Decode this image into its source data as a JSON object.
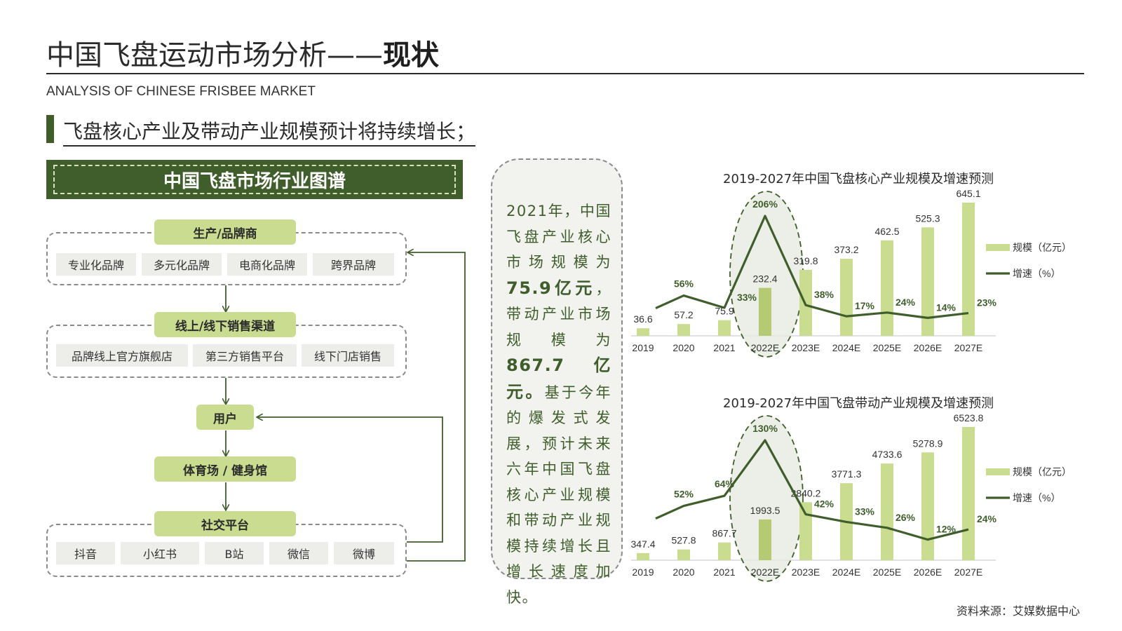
{
  "header": {
    "title_main": "中国飞盘运动市场分析——",
    "title_bold": "现状",
    "subtitle_en": "ANALYSIS OF CHINESE FRISBEE MARKET",
    "section_heading": "飞盘核心产业及带动产业规模预计将持续增长；"
  },
  "industry_map": {
    "title": "中国飞盘市场行业图谱",
    "producers": {
      "label": "生产/品牌商",
      "items": [
        "专业化品牌",
        "多元化品牌",
        "电商化品牌",
        "跨界品牌"
      ]
    },
    "channels": {
      "label": "线上/线下销售渠道",
      "items": [
        "品牌线上官方旗舰店",
        "第三方销售平台",
        "线下门店销售"
      ]
    },
    "users": {
      "label": "用户"
    },
    "venues": {
      "label": "体育场 / 健身馆"
    },
    "social": {
      "label": "社交平台",
      "items": [
        "抖音",
        "小红书",
        "B站",
        "微信",
        "微博"
      ]
    }
  },
  "text_panel": {
    "p1": "2021年，中国飞盘产业核心市场规模为",
    "v1": "75.9亿元",
    "p2": "，带动产业市场规模为",
    "v2": "867.7亿元。",
    "p3": "基于今年的爆发式发展，预计未来六年中国飞盘核心产业规模和带动产业规模持续增长且增长速度加快。"
  },
  "colors": {
    "accent_dark": "#3f5e2b",
    "bar": "#c9dc8f",
    "bar_dark": "#b5ca72",
    "line": "#3f5e2b",
    "chip_bg": "#ededea"
  },
  "chart_data": [
    {
      "type": "bar",
      "title": "2019-2027年中国飞盘核心产业规模及增速预测",
      "categories": [
        "2019",
        "2020",
        "2021",
        "2022E",
        "2023E",
        "2024E",
        "2025E",
        "2026E",
        "2027E"
      ],
      "series": [
        {
          "name": "规模（亿元）",
          "type": "bar",
          "values": [
            36.6,
            57.2,
            75.9,
            232.4,
            319.8,
            373.2,
            462.5,
            525.3,
            645.1
          ]
        },
        {
          "name": "增速（%）",
          "type": "line",
          "values": [
            null,
            56,
            33,
            206,
            38,
            17,
            24,
            14,
            23
          ]
        }
      ],
      "bar_labels": [
        "36.6",
        "57.2",
        "75.9",
        "232.4",
        "319.8",
        "373.2",
        "462.5",
        "525.3",
        "645.1"
      ],
      "line_labels": [
        "",
        "56%",
        "33%",
        "206%",
        "38%",
        "17%",
        "24%",
        "14%",
        "23%"
      ],
      "highlight_category": "2022E",
      "legend": [
        "规模（亿元）",
        "增速（%）"
      ],
      "ylim_bar": [
        0,
        645.1
      ],
      "ylim_line": [
        0,
        206
      ]
    },
    {
      "type": "bar",
      "title": "2019-2027年中国飞盘带动产业规模及增速预测",
      "categories": [
        "2019",
        "2020",
        "2021",
        "2022E",
        "2023E",
        "2024E",
        "2025E",
        "2026E",
        "2027E"
      ],
      "series": [
        {
          "name": "规模（亿元）",
          "type": "bar",
          "values": [
            347.4,
            527.8,
            867.7,
            1993.5,
            2840.2,
            3771.3,
            4733.6,
            5278.9,
            6523.8
          ]
        },
        {
          "name": "增速（%）",
          "type": "line",
          "values": [
            null,
            52,
            64,
            130,
            42,
            33,
            26,
            12,
            24
          ]
        }
      ],
      "bar_labels": [
        "347.4",
        "527.8",
        "867.7",
        "1993.5",
        "2840.2",
        "3771.3",
        "4733.6",
        "5278.9",
        "6523.8"
      ],
      "line_labels": [
        "",
        "52%",
        "64%",
        "130%",
        "42%",
        "33%",
        "26%",
        "12%",
        "24%"
      ],
      "highlight_category": "2022E",
      "legend": [
        "规模（亿元）",
        "增速（%）"
      ],
      "ylim_bar": [
        0,
        6523.8
      ],
      "ylim_line": [
        0,
        130
      ]
    }
  ],
  "footer": {
    "source": "资料来源：艾媒数据中心"
  }
}
